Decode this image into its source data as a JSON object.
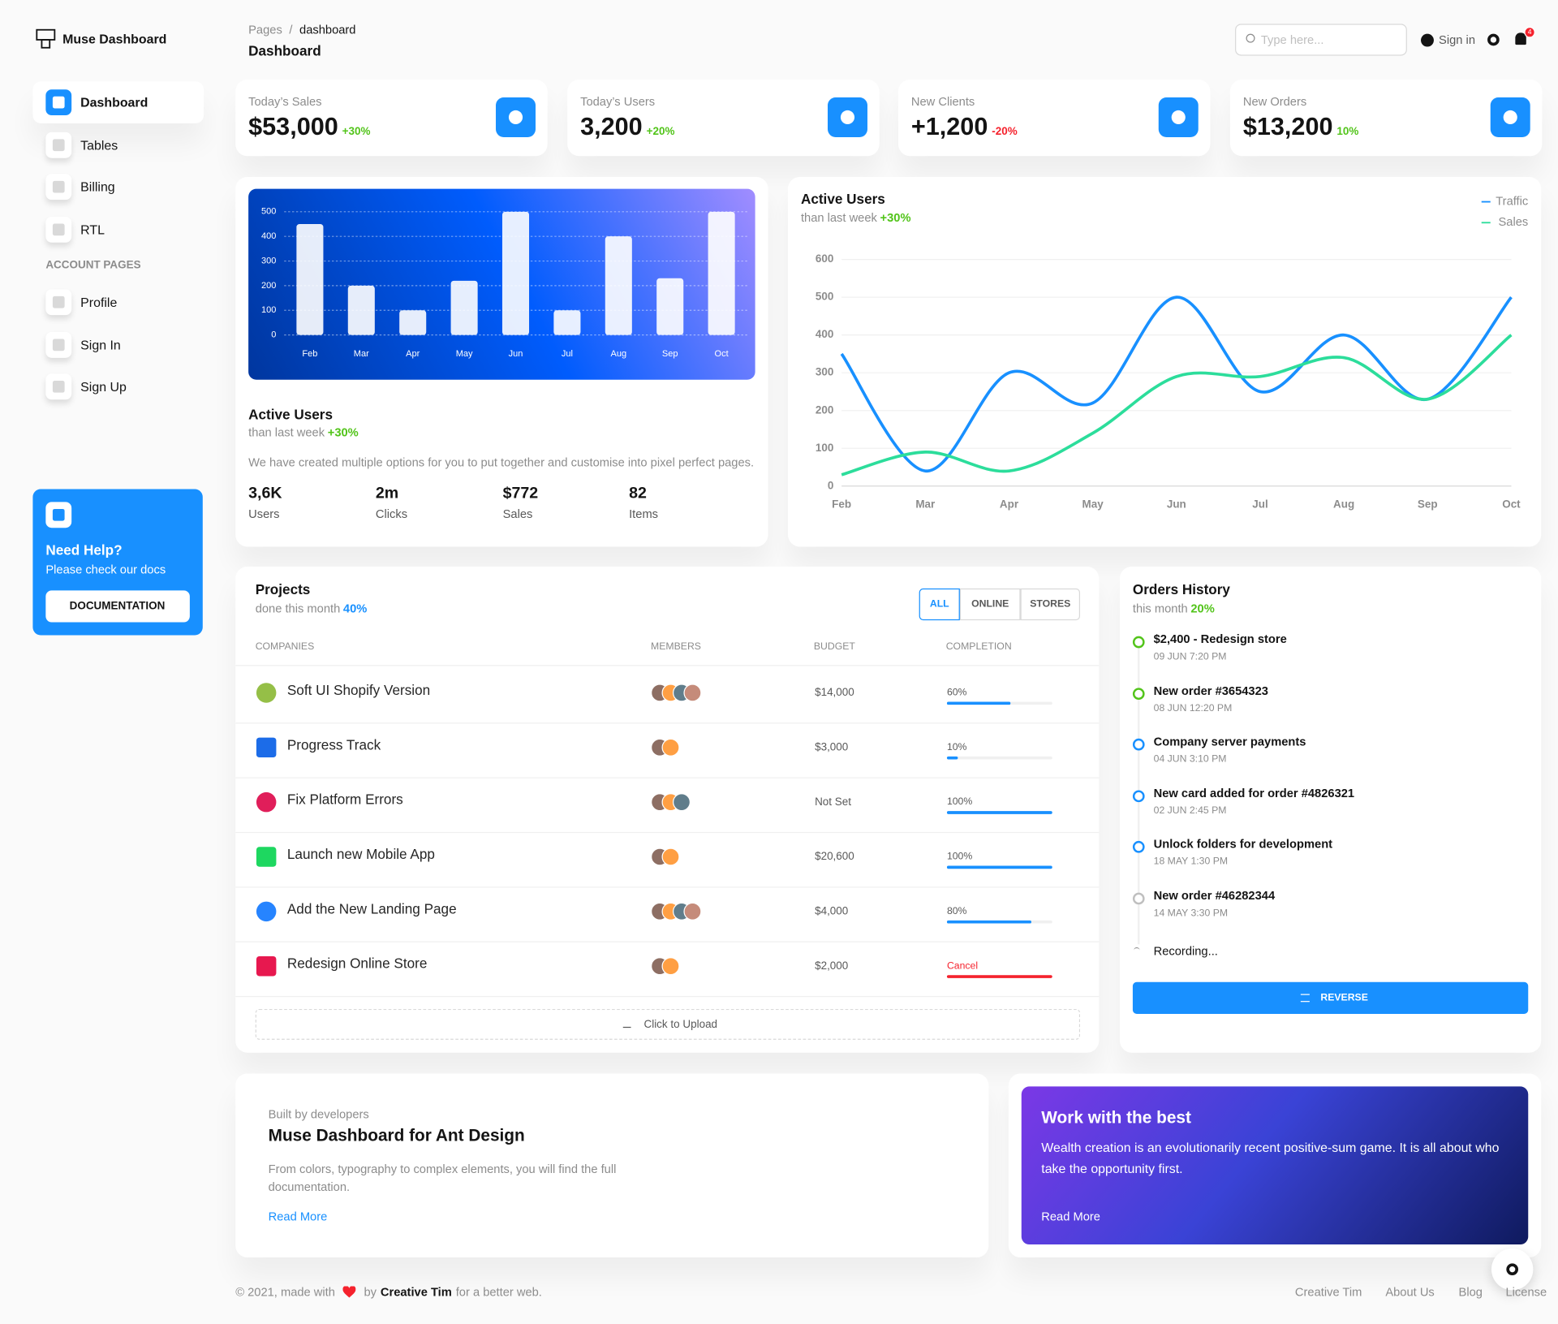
{
  "brand": "Muse Dashboard",
  "sidebar": {
    "nav": [
      "Dashboard",
      "Tables",
      "Billing",
      "RTL"
    ],
    "active": 0,
    "section": "ACCOUNT PAGES",
    "account_nav": [
      "Profile",
      "Sign In",
      "Sign Up"
    ],
    "help": {
      "title": "Need Help?",
      "text": "Please check our docs",
      "button": "DOCUMENTATION"
    }
  },
  "header": {
    "breadcrumb": [
      "Pages",
      "dashboard"
    ],
    "separator": "/",
    "title": "Dashboard",
    "search_placeholder": "Type here...",
    "sign_in": "Sign in",
    "notifications": 4
  },
  "stats": [
    {
      "label": "Today’s Sales",
      "value": "$53,000",
      "change": "+30%",
      "trend": "up"
    },
    {
      "label": "Today’s Users",
      "value": "3,200",
      "change": "+20%",
      "trend": "up"
    },
    {
      "label": "New Clients",
      "value": "+1,200",
      "change": "-20%",
      "trend": "down"
    },
    {
      "label": "New Orders",
      "value": "$13,200",
      "change": "10%",
      "trend": "up"
    }
  ],
  "bar_chart": {
    "type": "bar",
    "categories": [
      "Feb",
      "Mar",
      "Apr",
      "May",
      "Jun",
      "Jul",
      "Aug",
      "Sep",
      "Oct"
    ],
    "values": [
      450,
      200,
      100,
      220,
      500,
      100,
      400,
      230,
      500
    ],
    "ylim": [
      0,
      500
    ],
    "yticks": [
      0,
      100,
      200,
      300,
      400,
      500
    ],
    "color": "#ffffff",
    "grid": true
  },
  "active_users": {
    "title": "Active Users",
    "subtitle": "than last week",
    "change": "+30%",
    "description": "We have created multiple options for you to put together and customise into pixel perfect pages.",
    "stats": [
      {
        "value": "3,6K",
        "label": "Users"
      },
      {
        "value": "2m",
        "label": "Clicks"
      },
      {
        "value": "$772",
        "label": "Sales"
      },
      {
        "value": "82",
        "label": "Items"
      }
    ]
  },
  "line_chart": {
    "type": "line",
    "title": "Active Users",
    "subtitle": "than last week",
    "change": "+30%",
    "categories": [
      "Feb",
      "Mar",
      "Apr",
      "May",
      "Jun",
      "Jul",
      "Aug",
      "Sep",
      "Oct"
    ],
    "series": [
      {
        "name": "Traffic",
        "color": "#1890ff",
        "values": [
          350,
          40,
          300,
          220,
          500,
          250,
          400,
          230,
          500
        ]
      },
      {
        "name": "Sales",
        "color": "#2cdd9b",
        "values": [
          30,
          90,
          40,
          140,
          290,
          290,
          340,
          230,
          400
        ]
      }
    ],
    "ylim": [
      0,
      600
    ],
    "yticks": [
      0,
      100,
      200,
      300,
      400,
      500,
      600
    ],
    "grid": true,
    "legend": "top-right"
  },
  "projects": {
    "title": "Projects",
    "subtitle": "done this month",
    "change": "40%",
    "tabs": [
      "ALL",
      "ONLINE",
      "STORES"
    ],
    "active_tab": 0,
    "columns": [
      "COMPANIES",
      "MEMBERS",
      "BUDGET",
      "COMPLETION"
    ],
    "rows": [
      {
        "company": "Soft UI Shopify Version",
        "members": 4,
        "budget": "$14,000",
        "completion": 60,
        "completion_label": "60%",
        "status": "active"
      },
      {
        "company": "Progress Track",
        "members": 2,
        "budget": "$3,000",
        "completion": 10,
        "completion_label": "10%",
        "status": "active"
      },
      {
        "company": "Fix Platform Errors",
        "members": 3,
        "budget": "Not Set",
        "completion": 100,
        "completion_label": "100%",
        "status": "active"
      },
      {
        "company": "Launch new Mobile App",
        "members": 2,
        "budget": "$20,600",
        "completion": 100,
        "completion_label": "100%",
        "status": "active"
      },
      {
        "company": "Add the New Landing Page",
        "members": 4,
        "budget": "$4,000",
        "completion": 80,
        "completion_label": "80%",
        "status": "active"
      },
      {
        "company": "Redesign Online Store",
        "members": 2,
        "budget": "$2,000",
        "completion": 100,
        "completion_label": "Cancel",
        "status": "exception"
      }
    ],
    "upload": "Click to Upload"
  },
  "orders": {
    "title": "Orders History",
    "subtitle": "this month",
    "change": "20%",
    "items": [
      {
        "title": "$2,400 - Redesign store",
        "time": "09 JUN 7:20 PM",
        "color": "#52c41a"
      },
      {
        "title": "New order #3654323",
        "time": "08 JUN 12:20 PM",
        "color": "#52c41a"
      },
      {
        "title": "Company server payments",
        "time": "04 JUN 3:10 PM",
        "color": "#1890ff"
      },
      {
        "title": "New card added for order #4826321",
        "time": "02 JUN 2:45 PM",
        "color": "#1890ff"
      },
      {
        "title": "Unlock folders for development",
        "time": "18 MAY 1:30 PM",
        "color": "#1890ff"
      },
      {
        "title": "New order #46282344",
        "time": "14 MAY 3:30 PM",
        "color": "#bfbfbf"
      }
    ],
    "pending": "Recording...",
    "button": "REVERSE"
  },
  "promo": {
    "eyebrow": "Built by developers",
    "title": "Muse Dashboard for Ant Design",
    "text": "From colors, typography to complex elements, you will find the full documentation.",
    "link": "Read More"
  },
  "promo_dark": {
    "title": "Work with the best",
    "text": "Wealth creation is an evolutionarily recent positive-sum game. It is all about who take the opportunity first.",
    "link": "Read More"
  },
  "footer": {
    "prefix": "© 2021, made with",
    "by": "by",
    "author": "Creative Tim",
    "suffix": "for a better web.",
    "links": [
      "Creative Tim",
      "About Us",
      "Blog",
      "License"
    ]
  }
}
